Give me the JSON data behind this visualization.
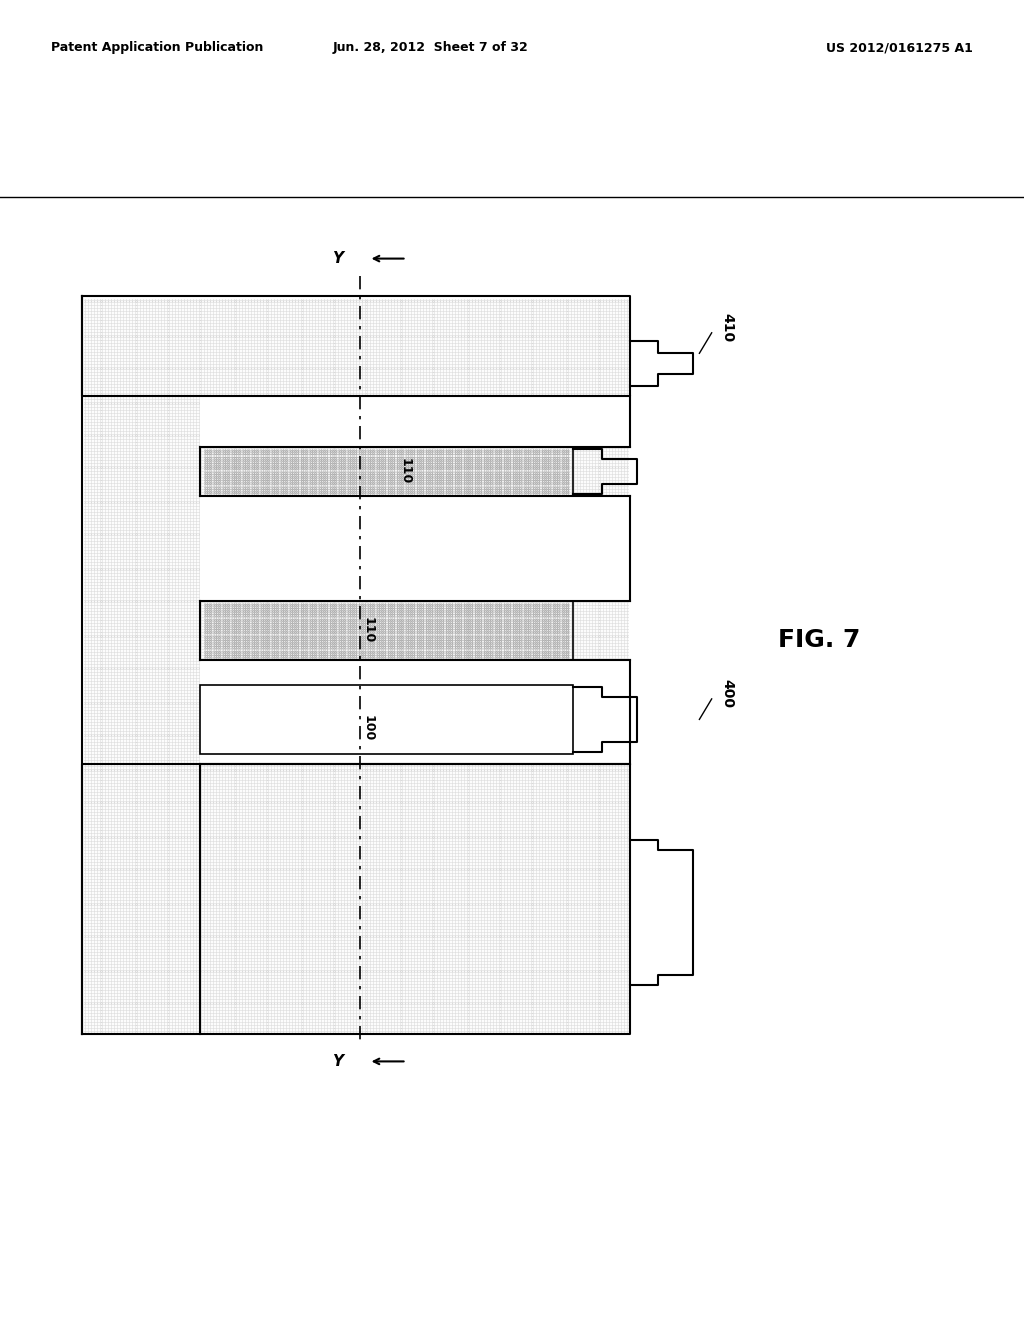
{
  "header_left": "Patent Application Publication",
  "header_center": "Jun. 28, 2012  Sheet 7 of 32",
  "header_right": "US 2012/0161275 A1",
  "fig_label": "FIG. 7",
  "background_color": "#ffffff",
  "dot_color": "#c8c8c8",
  "line_color": "#000000"
}
